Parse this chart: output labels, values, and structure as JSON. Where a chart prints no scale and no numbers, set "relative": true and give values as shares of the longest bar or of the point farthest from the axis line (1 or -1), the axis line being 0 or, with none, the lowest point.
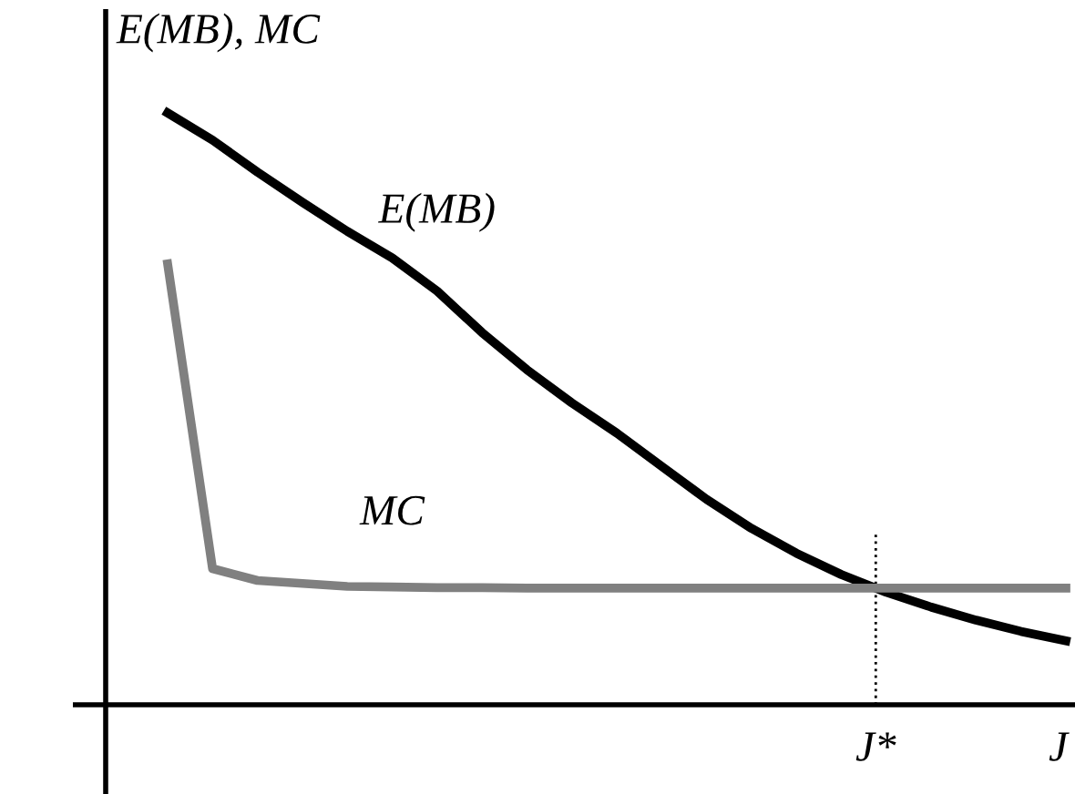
{
  "chart_data": {
    "type": "line",
    "relative": true,
    "xlabel": "J",
    "ylabel": "E(MB), MC",
    "annotations": [
      "J*"
    ],
    "categories": [
      null,
      null,
      null,
      null,
      null,
      null,
      null,
      null,
      null,
      null,
      null,
      null,
      null,
      null,
      null,
      null,
      null,
      null,
      null,
      null,
      null
    ],
    "series": [
      {
        "name": "E(MB)",
        "color": "#000000",
        "values": [
          1.0,
          0.954,
          0.9,
          0.849,
          0.8,
          0.755,
          0.699,
          0.629,
          0.566,
          0.51,
          0.459,
          0.403,
          0.347,
          0.298,
          0.256,
          0.22,
          0.19,
          0.165,
          0.143,
          0.124,
          0.108
        ]
      },
      {
        "name": "MC",
        "color": "#808080",
        "values": [
          0.745,
          0.23,
          0.21,
          0.205,
          0.2,
          0.199,
          0.198,
          0.198,
          0.197,
          0.197,
          0.197,
          0.197,
          0.197,
          0.197,
          0.197,
          0.197,
          0.197,
          0.197,
          0.197,
          0.197,
          0.197
        ]
      }
    ]
  }
}
